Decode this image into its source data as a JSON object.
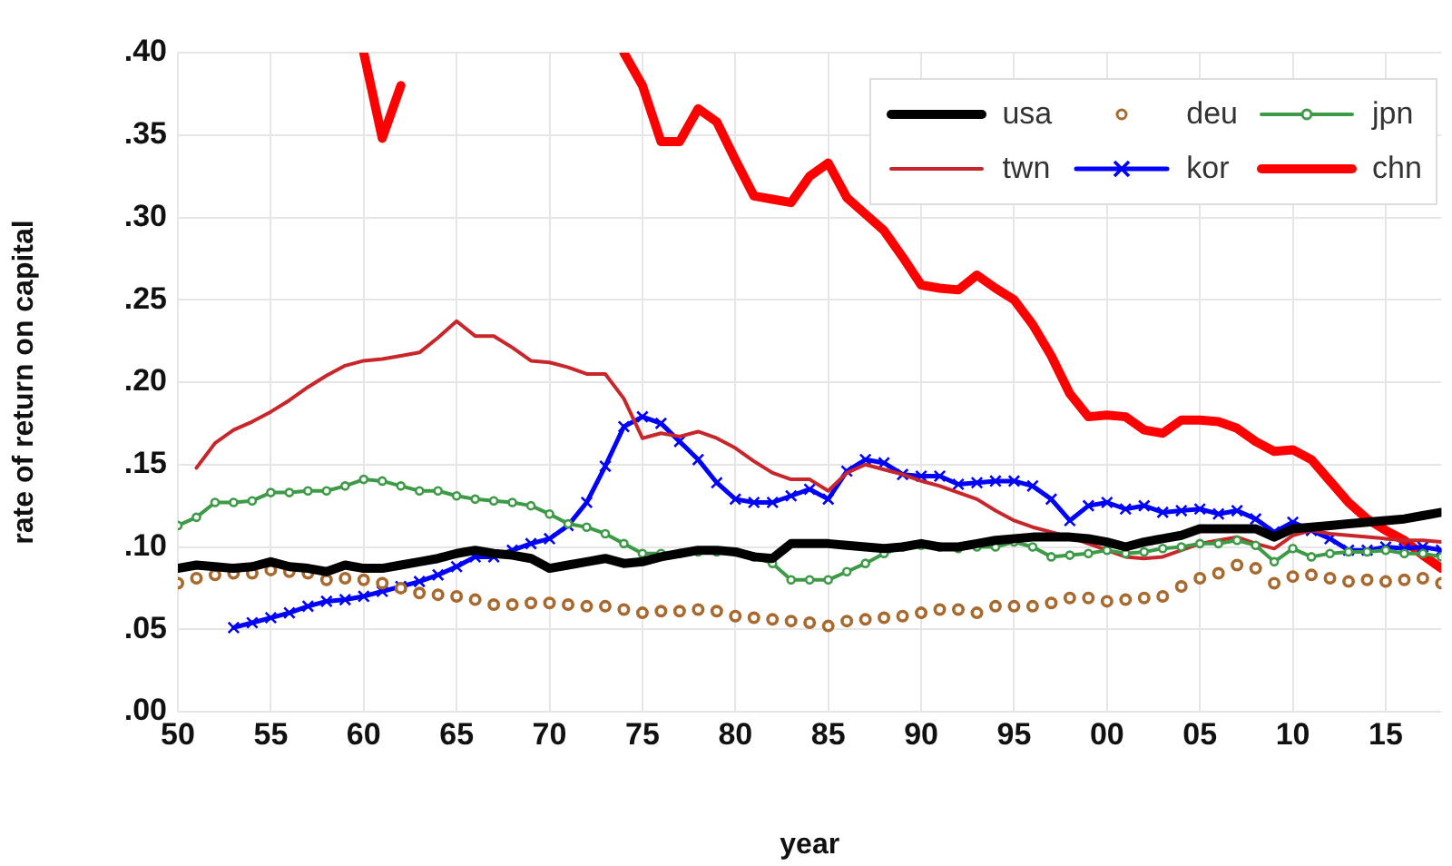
{
  "chart_data": {
    "type": "line",
    "xlabel": "year",
    "ylabel": "rate of return on capital",
    "x": [
      1950,
      1951,
      1952,
      1953,
      1954,
      1955,
      1956,
      1957,
      1958,
      1959,
      1960,
      1961,
      1962,
      1963,
      1964,
      1965,
      1966,
      1967,
      1968,
      1969,
      1970,
      1971,
      1972,
      1973,
      1974,
      1975,
      1976,
      1977,
      1978,
      1979,
      1980,
      1981,
      1982,
      1983,
      1984,
      1985,
      1986,
      1987,
      1988,
      1989,
      1990,
      1991,
      1992,
      1993,
      1994,
      1995,
      1996,
      1997,
      1998,
      1999,
      2000,
      2001,
      2002,
      2003,
      2004,
      2005,
      2006,
      2007,
      2008,
      2009,
      2010,
      2011,
      2012,
      2013,
      2014,
      2015,
      2016,
      2017,
      2018
    ],
    "xlim": [
      1950,
      2018
    ],
    "xticks": [
      {
        "value": 1950,
        "label": "50"
      },
      {
        "value": 1955,
        "label": "55"
      },
      {
        "value": 1960,
        "label": "60"
      },
      {
        "value": 1965,
        "label": "65"
      },
      {
        "value": 1970,
        "label": "70"
      },
      {
        "value": 1975,
        "label": "75"
      },
      {
        "value": 1980,
        "label": "80"
      },
      {
        "value": 1985,
        "label": "85"
      },
      {
        "value": 1990,
        "label": "90"
      },
      {
        "value": 1995,
        "label": "95"
      },
      {
        "value": 2000,
        "label": "00"
      },
      {
        "value": 2005,
        "label": "05"
      },
      {
        "value": 2010,
        "label": "10"
      },
      {
        "value": 2015,
        "label": "15"
      }
    ],
    "ylim": [
      0,
      0.4
    ],
    "yticks": [
      {
        "value": 0,
        "label": ".00"
      },
      {
        "value": 0.05,
        "label": ".05"
      },
      {
        "value": 0.1,
        "label": ".10"
      },
      {
        "value": 0.15,
        "label": ".15"
      },
      {
        "value": 0.2,
        "label": ".20"
      },
      {
        "value": 0.25,
        "label": ".25"
      },
      {
        "value": 0.3,
        "label": ".30"
      },
      {
        "value": 0.35,
        "label": ".35"
      },
      {
        "value": 0.4,
        "label": ".40"
      }
    ],
    "grid": true,
    "legend": "top right",
    "series": [
      {
        "name": "usa",
        "color": "#000000",
        "marker": "none",
        "values": [
          0.087,
          0.089,
          0.088,
          0.087,
          0.088,
          0.091,
          0.088,
          0.087,
          0.085,
          0.089,
          0.087,
          0.087,
          0.089,
          0.091,
          0.093,
          0.096,
          0.098,
          0.096,
          0.095,
          0.093,
          0.087,
          0.089,
          0.091,
          0.093,
          0.09,
          0.091,
          0.094,
          0.096,
          0.098,
          0.098,
          0.097,
          0.094,
          0.093,
          0.102,
          0.102,
          0.102,
          0.101,
          0.1,
          0.099,
          0.1,
          0.102,
          0.1,
          0.1,
          0.102,
          0.104,
          0.105,
          0.106,
          0.106,
          0.106,
          0.105,
          0.103,
          0.1,
          0.103,
          0.105,
          0.107,
          0.111,
          0.111,
          0.111,
          0.111,
          0.106,
          0.111,
          0.112,
          0.113,
          0.114,
          0.115,
          0.116,
          0.117,
          0.119,
          0.121
        ]
      },
      {
        "name": "deu",
        "color": "#a8692e",
        "type": "scatter",
        "marker": "circle",
        "values": [
          0.078,
          0.081,
          0.083,
          0.084,
          0.084,
          0.086,
          0.085,
          0.084,
          0.08,
          0.081,
          0.08,
          0.078,
          0.075,
          0.072,
          0.071,
          0.07,
          0.068,
          0.065,
          0.065,
          0.066,
          0.066,
          0.065,
          0.064,
          0.064,
          0.062,
          0.06,
          0.061,
          0.061,
          0.062,
          0.061,
          0.058,
          0.057,
          0.056,
          0.055,
          0.054,
          0.052,
          0.055,
          0.056,
          0.057,
          0.058,
          0.06,
          0.062,
          0.062,
          0.06,
          0.064,
          0.064,
          0.064,
          0.066,
          0.069,
          0.069,
          0.067,
          0.068,
          0.069,
          0.07,
          0.076,
          0.081,
          0.084,
          0.089,
          0.087,
          0.078,
          0.082,
          0.083,
          0.081,
          0.079,
          0.08,
          0.079,
          0.08,
          0.081,
          0.078
        ]
      },
      {
        "name": "jpn",
        "color": "#3d9a46",
        "marker": "circle",
        "values": [
          0.113,
          0.118,
          0.127,
          0.127,
          0.128,
          0.133,
          0.133,
          0.134,
          0.134,
          0.137,
          0.141,
          0.14,
          0.137,
          0.134,
          0.134,
          0.131,
          0.129,
          0.128,
          0.127,
          0.125,
          0.12,
          0.114,
          0.112,
          0.108,
          0.102,
          0.096,
          0.096,
          0.096,
          0.097,
          0.097,
          0.097,
          0.094,
          0.09,
          0.08,
          0.08,
          0.08,
          0.085,
          0.09,
          0.096,
          0.1,
          0.101,
          0.1,
          0.099,
          0.1,
          0.1,
          0.103,
          0.1,
          0.094,
          0.095,
          0.096,
          0.098,
          0.096,
          0.097,
          0.099,
          0.1,
          0.102,
          0.102,
          0.104,
          0.101,
          0.091,
          0.099,
          0.094,
          0.096,
          0.097,
          0.097,
          0.098,
          0.096,
          0.096,
          0.094
        ]
      },
      {
        "name": "twn",
        "color": "#c8262b",
        "marker": "none",
        "values": [
          null,
          0.148,
          0.163,
          0.171,
          0.176,
          0.182,
          0.189,
          0.197,
          0.204,
          0.21,
          0.213,
          0.214,
          0.216,
          0.218,
          0.227,
          0.237,
          0.228,
          0.228,
          0.221,
          0.213,
          0.212,
          0.209,
          0.205,
          0.205,
          0.19,
          0.166,
          0.169,
          0.167,
          0.17,
          0.166,
          0.16,
          0.152,
          0.145,
          0.141,
          0.141,
          0.134,
          0.145,
          0.15,
          0.147,
          0.144,
          0.14,
          0.137,
          0.133,
          0.129,
          0.122,
          0.116,
          0.112,
          0.109,
          0.106,
          0.102,
          0.098,
          0.094,
          0.093,
          0.094,
          0.098,
          0.102,
          0.104,
          0.106,
          0.102,
          0.099,
          0.107,
          0.11,
          0.108,
          0.107,
          0.106,
          0.105,
          0.104,
          0.104,
          0.103
        ]
      },
      {
        "name": "kor",
        "color": "#0000ff",
        "marker": "cross",
        "values": [
          null,
          null,
          null,
          0.051,
          0.054,
          0.057,
          0.06,
          0.064,
          0.067,
          0.068,
          0.07,
          0.073,
          0.076,
          0.079,
          0.083,
          0.088,
          0.094,
          0.094,
          0.098,
          0.102,
          0.105,
          0.113,
          0.127,
          0.149,
          0.173,
          0.179,
          0.175,
          0.164,
          0.153,
          0.139,
          0.129,
          0.127,
          0.127,
          0.131,
          0.135,
          0.129,
          0.146,
          0.153,
          0.151,
          0.144,
          0.143,
          0.143,
          0.138,
          0.139,
          0.14,
          0.14,
          0.137,
          0.129,
          0.116,
          0.125,
          0.127,
          0.123,
          0.125,
          0.121,
          0.122,
          0.123,
          0.12,
          0.122,
          0.117,
          0.109,
          0.115,
          0.11,
          0.105,
          0.098,
          0.098,
          0.1,
          0.099,
          0.1,
          0.098
        ]
      },
      {
        "name": "chn",
        "color": "#ff0000",
        "marker": "none",
        "values": [
          null,
          null,
          null,
          null,
          null,
          null,
          null,
          null,
          null,
          null,
          0.4,
          0.348,
          0.38,
          null,
          null,
          null,
          null,
          null,
          null,
          null,
          null,
          null,
          null,
          null,
          0.4,
          0.38,
          0.346,
          0.346,
          0.366,
          0.358,
          0.335,
          0.313,
          0.311,
          0.309,
          0.325,
          0.333,
          0.312,
          0.302,
          0.292,
          0.276,
          0.259,
          0.257,
          0.256,
          0.265,
          0.257,
          0.25,
          0.235,
          0.216,
          0.193,
          0.179,
          0.18,
          0.179,
          0.171,
          0.169,
          0.177,
          0.177,
          0.176,
          0.172,
          0.164,
          0.158,
          0.159,
          0.153,
          0.14,
          0.127,
          0.117,
          0.11,
          0.104,
          0.095,
          0.087
        ]
      }
    ]
  }
}
